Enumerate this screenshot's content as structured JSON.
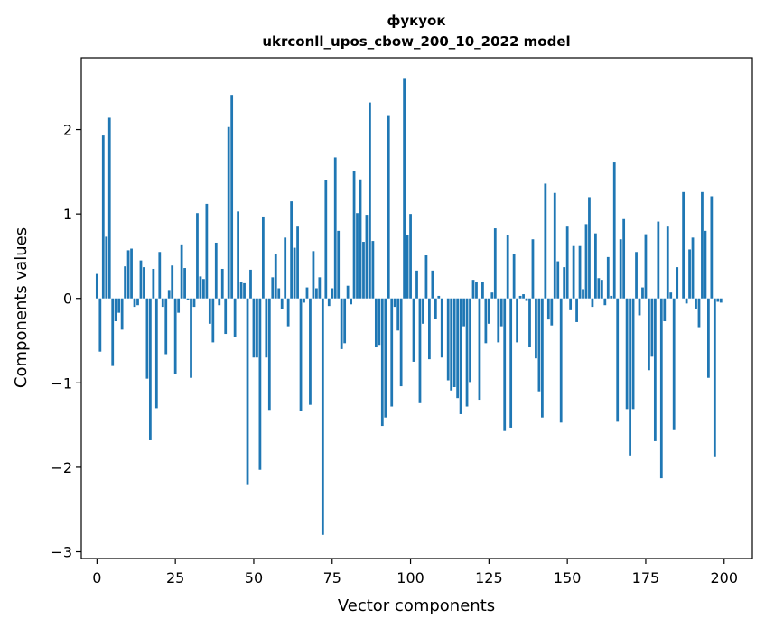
{
  "chart_data": {
    "type": "bar",
    "title": "фукуок",
    "subtitle": "ukrconll_upos_cbow_200_10_2022 model",
    "xlabel": "Vector components",
    "ylabel": "Components values",
    "xlim": [
      -5,
      209
    ],
    "ylim": [
      -3.08,
      2.85
    ],
    "xticks": [
      0,
      25,
      50,
      75,
      100,
      125,
      150,
      175,
      200
    ],
    "yticks": [
      -3,
      -2,
      -1,
      0,
      1,
      2
    ],
    "bar_color": "#1f77b4",
    "x": [
      0,
      1,
      2,
      3,
      4,
      5,
      6,
      7,
      8,
      9,
      10,
      11,
      12,
      13,
      14,
      15,
      16,
      17,
      18,
      19,
      20,
      21,
      22,
      23,
      24,
      25,
      26,
      27,
      28,
      29,
      30,
      31,
      32,
      33,
      34,
      35,
      36,
      37,
      38,
      39,
      40,
      41,
      42,
      43,
      44,
      45,
      46,
      47,
      48,
      49,
      50,
      51,
      52,
      53,
      54,
      55,
      56,
      57,
      58,
      59,
      60,
      61,
      62,
      63,
      64,
      65,
      66,
      67,
      68,
      69,
      70,
      71,
      72,
      73,
      74,
      75,
      76,
      77,
      78,
      79,
      80,
      81,
      82,
      83,
      84,
      85,
      86,
      87,
      88,
      89,
      90,
      91,
      92,
      93,
      94,
      95,
      96,
      97,
      98,
      99,
      100,
      101,
      102,
      103,
      104,
      105,
      106,
      107,
      108,
      109,
      110,
      111,
      112,
      113,
      114,
      115,
      116,
      117,
      118,
      119,
      120,
      121,
      122,
      123,
      124,
      125,
      126,
      127,
      128,
      129,
      130,
      131,
      132,
      133,
      134,
      135,
      136,
      137,
      138,
      139,
      140,
      141,
      142,
      143,
      144,
      145,
      146,
      147,
      148,
      149,
      150,
      151,
      152,
      153,
      154,
      155,
      156,
      157,
      158,
      159,
      160,
      161,
      162,
      163,
      164,
      165,
      166,
      167,
      168,
      169,
      170,
      171,
      172,
      173,
      174,
      175,
      176,
      177,
      178,
      179,
      180,
      181,
      182,
      183,
      184,
      185,
      186,
      187,
      188,
      189,
      190,
      191,
      192,
      193,
      194,
      195,
      196,
      197,
      198,
      199
    ],
    "values": [
      0.29,
      -0.63,
      1.93,
      0.73,
      2.14,
      -0.8,
      -0.27,
      -0.17,
      -0.37,
      0.38,
      0.57,
      0.59,
      -0.1,
      -0.08,
      0.45,
      0.37,
      -0.95,
      -1.68,
      0.35,
      -1.3,
      0.55,
      -0.1,
      -0.66,
      0.1,
      0.39,
      -0.89,
      -0.17,
      0.64,
      0.36,
      -0.02,
      -0.94,
      -0.1,
      1.01,
      0.26,
      0.23,
      1.12,
      -0.3,
      -0.52,
      0.66,
      -0.08,
      0.35,
      -0.42,
      2.03,
      2.41,
      -0.46,
      1.03,
      0.2,
      0.18,
      -2.2,
      0.34,
      -0.7,
      -0.7,
      -2.03,
      0.97,
      -0.7,
      -1.32,
      0.25,
      0.53,
      0.12,
      -0.13,
      0.72,
      -0.33,
      1.15,
      0.6,
      0.85,
      -1.33,
      -0.05,
      0.13,
      -1.26,
      0.56,
      0.12,
      0.25,
      -2.8,
      1.4,
      -0.09,
      0.12,
      1.67,
      0.8,
      -0.6,
      -0.53,
      0.15,
      -0.07,
      1.51,
      1.01,
      1.41,
      0.67,
      0.99,
      2.32,
      0.68,
      -0.58,
      -0.55,
      -1.51,
      -1.41,
      2.16,
      -1.28,
      -0.1,
      -0.38,
      -1.04,
      2.6,
      0.75,
      1.0,
      -0.75,
      0.33,
      -1.24,
      -0.3,
      0.51,
      -0.72,
      0.33,
      -0.24,
      0.03,
      -0.7,
      0.0,
      -0.97,
      -1.09,
      -1.05,
      -1.18,
      -1.37,
      -0.33,
      -1.28,
      -0.99,
      0.22,
      0.19,
      -1.2,
      0.2,
      -0.53,
      -0.3,
      0.07,
      0.83,
      -0.52,
      -0.33,
      -1.57,
      0.75,
      -1.53,
      0.53,
      -0.52,
      0.03,
      0.05,
      -0.03,
      -0.58,
      0.7,
      -0.71,
      -1.1,
      -1.41,
      1.36,
      -0.25,
      -0.32,
      1.25,
      0.44,
      -1.47,
      0.37,
      0.85,
      -0.14,
      0.62,
      -0.28,
      0.62,
      0.11,
      0.88,
      1.2,
      -0.1,
      0.77,
      0.24,
      0.22,
      -0.08,
      0.49,
      0.03,
      1.61,
      -1.46,
      0.7,
      0.94,
      -1.31,
      -1.86,
      -1.31,
      0.55,
      -0.2,
      0.13,
      0.76,
      -0.85,
      -0.69,
      -1.69,
      0.91,
      -2.13,
      -0.27,
      0.85,
      0.07,
      -1.56,
      0.37,
      0.0,
      1.26,
      -0.06,
      0.58,
      0.72,
      -0.12,
      -0.34,
      1.26,
      0.8,
      -0.94,
      1.21,
      -1.87,
      -0.04,
      -0.05
    ]
  }
}
